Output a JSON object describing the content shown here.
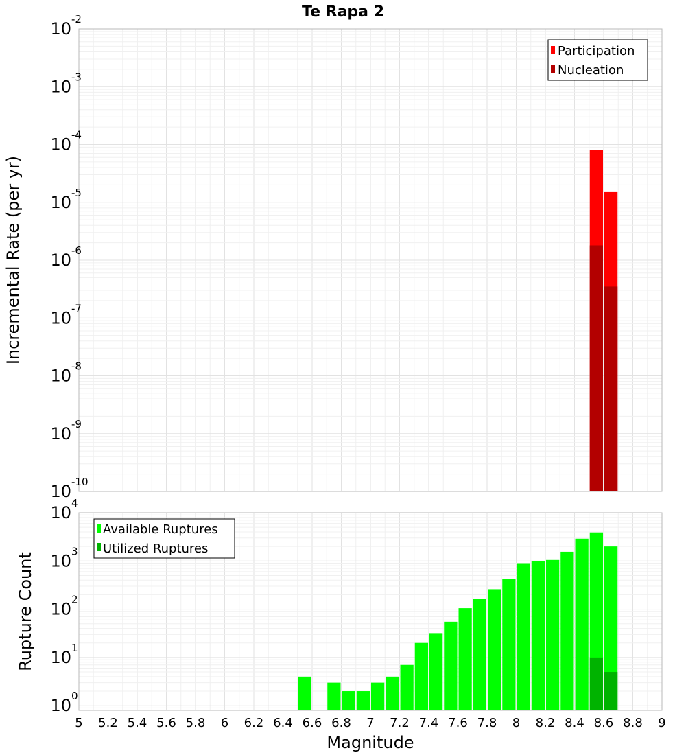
{
  "chart_data": [
    {
      "type": "bar",
      "title": "Te Rapa 2",
      "xlabel": "",
      "ylabel": "Incremental Rate (per yr)",
      "yscale": "log",
      "ylim": [
        1e-10,
        0.01
      ],
      "xlim": [
        5,
        9
      ],
      "bin_width": 0.1,
      "ytick_labels": [
        {
          "base": "10",
          "exp": "-10"
        },
        {
          "base": "10",
          "exp": "-9"
        },
        {
          "base": "10",
          "exp": "-8"
        },
        {
          "base": "10",
          "exp": "-7"
        },
        {
          "base": "10",
          "exp": "-6"
        },
        {
          "base": "10",
          "exp": "-5"
        },
        {
          "base": "10",
          "exp": "-4"
        },
        {
          "base": "10",
          "exp": "-3"
        },
        {
          "base": "10",
          "exp": "-2"
        }
      ],
      "legend_position": "top-right",
      "series": [
        {
          "name": "Participation",
          "color": "#ff0000",
          "x": [
            8.55,
            8.65
          ],
          "values": [
            8e-05,
            1.5e-05
          ]
        },
        {
          "name": "Nucleation",
          "color": "#b30000",
          "x": [
            8.55,
            8.65
          ],
          "values": [
            1.8e-06,
            3.5e-07
          ]
        }
      ]
    },
    {
      "type": "bar",
      "title": "",
      "xlabel": "Magnitude",
      "ylabel": "Rupture Count",
      "yscale": "log",
      "ylim": [
        0.8,
        10000
      ],
      "xlim": [
        5,
        9
      ],
      "bin_width": 0.1,
      "ytick_labels": [
        {
          "base": "10",
          "exp": "0"
        },
        {
          "base": "10",
          "exp": "1"
        },
        {
          "base": "10",
          "exp": "2"
        },
        {
          "base": "10",
          "exp": "3"
        },
        {
          "base": "10",
          "exp": "4"
        }
      ],
      "xtick_labels": [
        "5",
        "5.2",
        "5.4",
        "5.6",
        "5.8",
        "6",
        "6.2",
        "6.4",
        "6.6",
        "6.8",
        "7",
        "7.2",
        "7.4",
        "7.6",
        "7.8",
        "8",
        "8.2",
        "8.4",
        "8.6",
        "8.8",
        "9"
      ],
      "legend_position": "top-left",
      "series": [
        {
          "name": "Available Ruptures",
          "color": "#00ff00",
          "x": [
            6.55,
            6.75,
            6.85,
            6.95,
            7.05,
            7.15,
            7.25,
            7.35,
            7.45,
            7.55,
            7.65,
            7.75,
            7.85,
            7.95,
            8.05,
            8.15,
            8.25,
            8.35,
            8.45,
            8.55,
            8.65
          ],
          "values": [
            4,
            3,
            2,
            2,
            3,
            4,
            7,
            20,
            32,
            55,
            105,
            165,
            260,
            420,
            900,
            1000,
            1050,
            1550,
            2900,
            3900,
            2000
          ]
        },
        {
          "name": "Utilized Ruptures",
          "color": "#00b300",
          "x": [
            8.55,
            8.65
          ],
          "values": [
            10,
            5
          ]
        }
      ]
    }
  ]
}
